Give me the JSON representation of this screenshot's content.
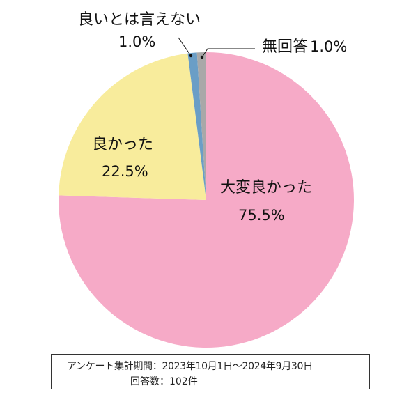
{
  "chart_data": {
    "type": "pie",
    "slices": [
      {
        "label": "大変良かった",
        "value": 75.5,
        "value_label": "75.5%",
        "color": "#f6aac7"
      },
      {
        "label": "良かった",
        "value": 22.5,
        "value_label": "22.5%",
        "color": "#f8ec9c"
      },
      {
        "label": "良いとは言えない",
        "value": 1.0,
        "value_label": "1.0%",
        "color": "#6a9ec6"
      },
      {
        "label": "無回答",
        "value": 1.0,
        "value_label": "1.0%",
        "color": "#a8a8a8"
      }
    ],
    "start": "12 o'clock",
    "direction": "clockwise"
  },
  "note": {
    "period": "アンケート集計期間：2023年10月1日～2024年9月30日",
    "count": "回答数：102件"
  }
}
